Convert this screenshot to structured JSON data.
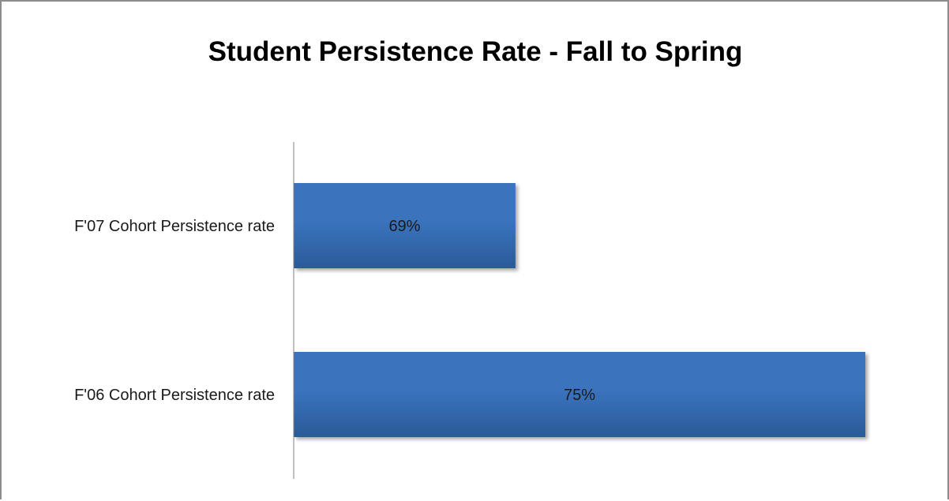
{
  "chart_data": {
    "type": "bar",
    "orientation": "horizontal",
    "title": "Student Persistence Rate - Fall to Spring",
    "categories": [
      "F'07 Cohort Persistence rate",
      "F'06 Cohort Persistence rate"
    ],
    "values": [
      69,
      75
    ],
    "value_labels": [
      "69%",
      "75%"
    ],
    "bar_color": "#3a73bd",
    "bar_color_dark": "#2a5a98",
    "grid": false,
    "legend": "none",
    "value_axis_visible": false
  }
}
